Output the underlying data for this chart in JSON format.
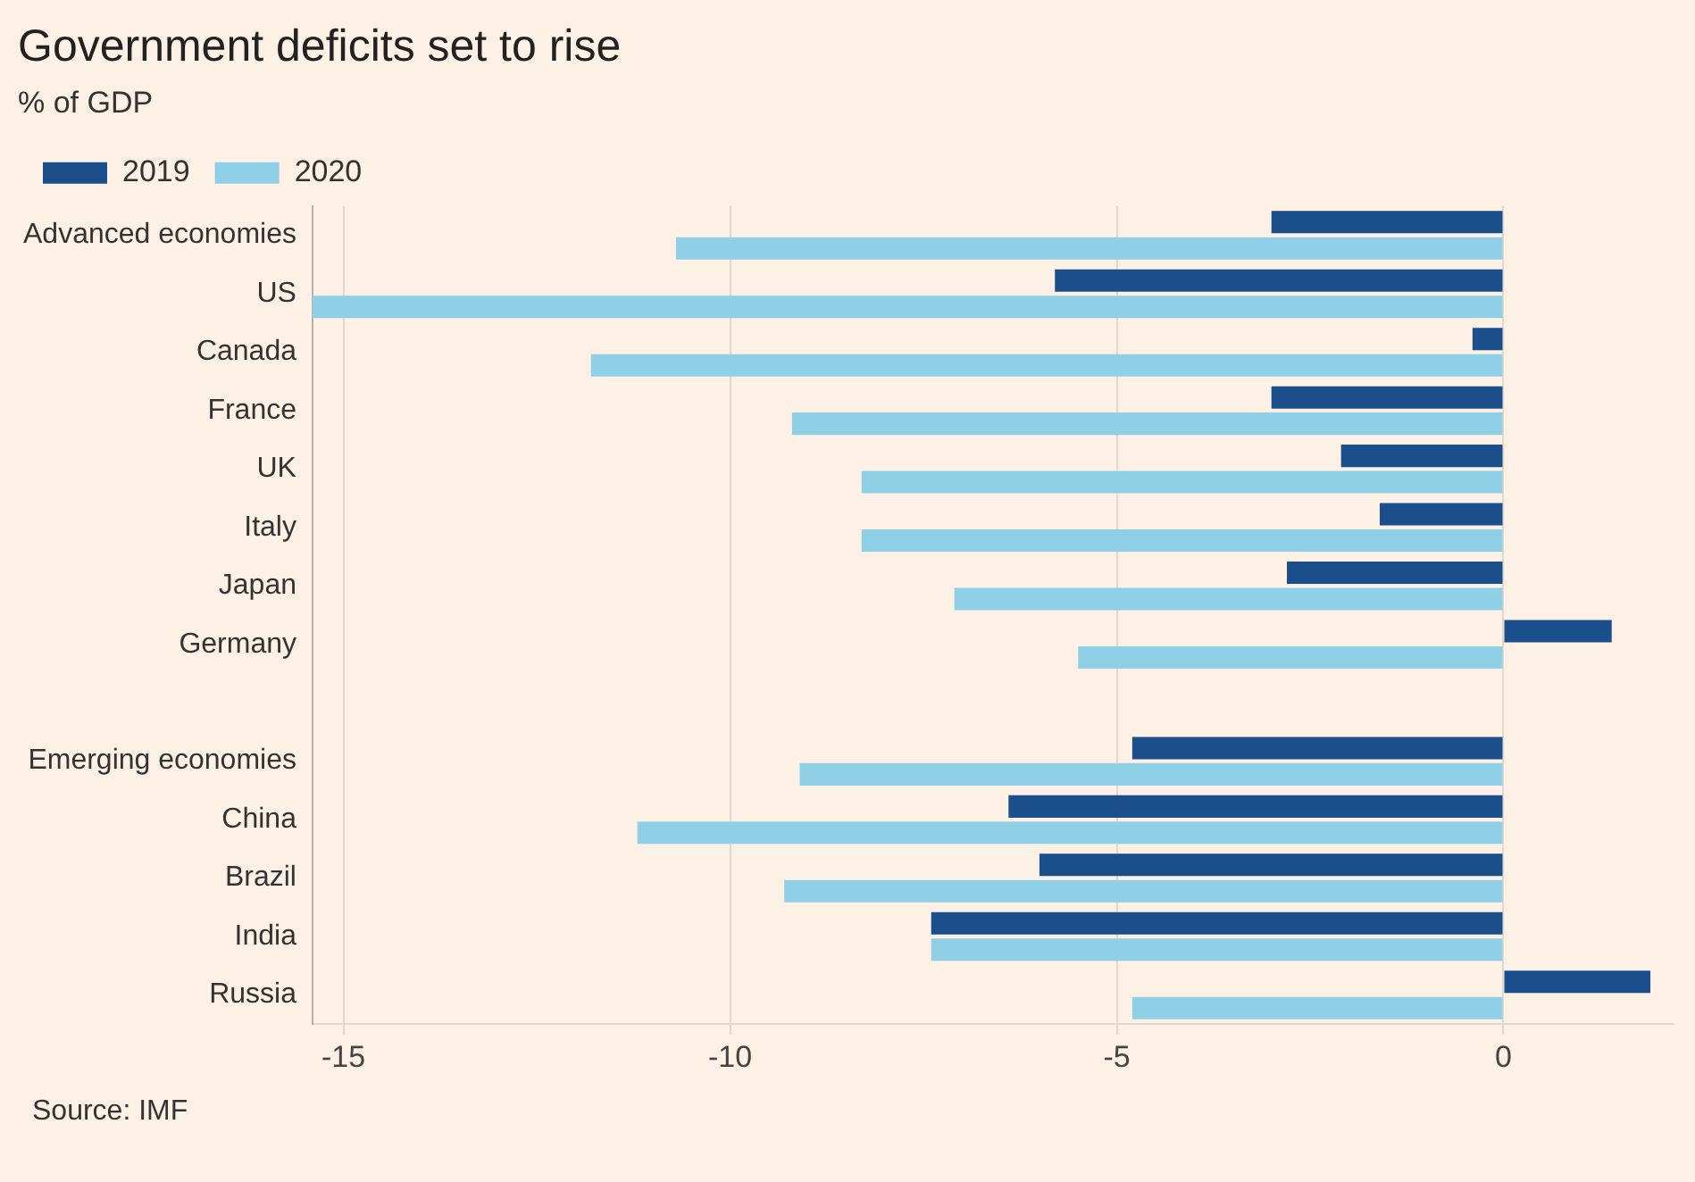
{
  "chart_data": {
    "type": "bar",
    "orientation": "horizontal",
    "title": "Government deficits set to rise",
    "subtitle": "% of GDP",
    "categories": [
      "Advanced economies",
      "US",
      "Canada",
      "France",
      "UK",
      "Italy",
      "Japan",
      "Germany",
      null,
      "Emerging economies",
      "China",
      "Brazil",
      "India",
      "Russia"
    ],
    "series": [
      {
        "name": "2019",
        "color": "#1a4f8b",
        "values": [
          -3.0,
          -5.8,
          -0.4,
          -3.0,
          -2.1,
          -1.6,
          -2.8,
          1.4,
          null,
          -4.8,
          -6.4,
          -6.0,
          -7.4,
          1.9
        ]
      },
      {
        "name": "2020",
        "color": "#8fd0e6",
        "values": [
          -10.7,
          -15.4,
          -11.8,
          -9.2,
          -8.3,
          -8.3,
          -7.1,
          -5.5,
          null,
          -9.1,
          -11.2,
          -9.3,
          -7.4,
          -4.8
        ]
      }
    ],
    "xlim": [
      -15.4,
      2.2
    ],
    "xticks": [
      -15,
      -10,
      -5,
      0
    ],
    "grid": "x",
    "legend": "top left",
    "annotations": [
      "Source: IMF"
    ]
  }
}
